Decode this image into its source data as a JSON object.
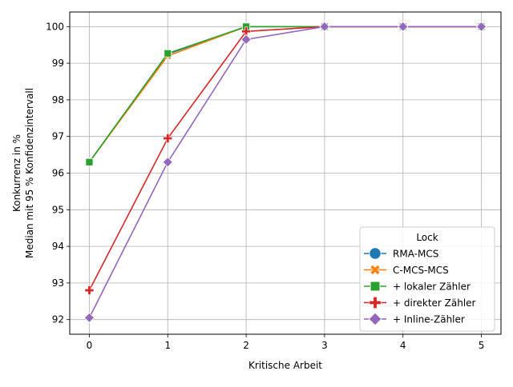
{
  "chart_data": {
    "type": "line",
    "xlabel": "Kritische Arbeit",
    "ylabel_lines": [
      "Konkurrenz in %",
      "Median mit 95 % Konfidenzintervall"
    ],
    "x": [
      0,
      1,
      2,
      3,
      4,
      5
    ],
    "xlim": [
      -0.25,
      5.25
    ],
    "ylim": [
      91.6,
      100.4
    ],
    "xticks": [
      "0",
      "1",
      "2",
      "3",
      "4",
      "5"
    ],
    "yticks": [
      92,
      93,
      94,
      95,
      96,
      97,
      98,
      99,
      100
    ],
    "grid": true,
    "legend_title": "Lock",
    "legend_position": "lower-right",
    "series": [
      {
        "name": "RMA-MCS",
        "color": "#1f77b4",
        "marker": "circle",
        "values": [
          96.3,
          99.25,
          100,
          100,
          100,
          100
        ]
      },
      {
        "name": "C-MCS-MCS",
        "color": "#ff7f0e",
        "marker": "x",
        "values": [
          96.3,
          99.2,
          100,
          100,
          100,
          100
        ]
      },
      {
        "name": "+ lokaler Zähler",
        "color": "#2ca02c",
        "marker": "square",
        "values": [
          96.3,
          99.27,
          100,
          100,
          100,
          100
        ]
      },
      {
        "name": "+ direkter Zähler",
        "color": "#d62728",
        "marker": "plus",
        "values": [
          92.8,
          96.95,
          99.87,
          100,
          100,
          100
        ]
      },
      {
        "name": "+ Inline-Zähler",
        "color": "#9467bd",
        "marker": "diamond",
        "values": [
          92.05,
          96.3,
          99.65,
          100,
          100,
          100
        ]
      }
    ]
  }
}
